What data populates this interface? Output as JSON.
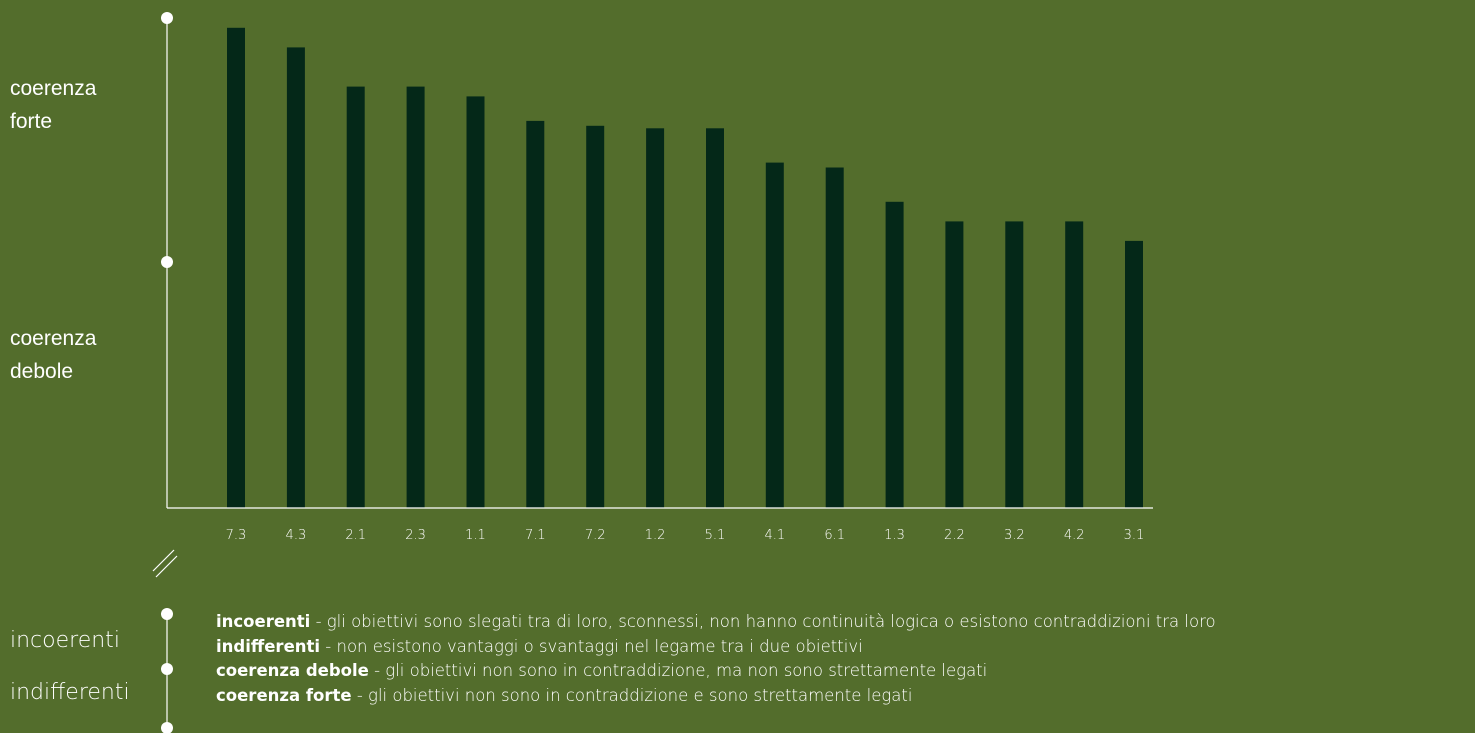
{
  "scale": {
    "strong_label": "coerenza\nforte",
    "weak_label": "coerenza\ndebole",
    "incoherent_label": "incoerenti",
    "indifferent_label": "indifferenti"
  },
  "legend": [
    {
      "term": "incoerenti",
      "description": " - gli obiettivi sono slegati tra di loro, sconnessi, non hanno continuità logica o esistono contraddizioni tra loro"
    },
    {
      "term": "indifferenti",
      "description": " - non esistono vantaggi o svantaggi nel legame tra i due obiettivi"
    },
    {
      "term": "coerenza debole",
      "description": " - gli obiettivi non sono in contraddizione, ma non sono strettamente legati"
    },
    {
      "term": "coerenza forte",
      "description": " - gli obiettivi non sono in contraddizione e sono strettamente legati"
    }
  ],
  "colors": {
    "background": "#536d2c",
    "bar": "#042818",
    "axis": "#ffffff"
  },
  "chart_data": {
    "type": "bar",
    "categories": [
      "7.3",
      "4.3",
      "2.1",
      "2.3",
      "1.1",
      "7.1",
      "7.2",
      "1.2",
      "5.1",
      "4.1",
      "6.1",
      "1.3",
      "2.2",
      "3.2",
      "4.2",
      "3.1"
    ],
    "values": [
      1.96,
      1.88,
      1.72,
      1.72,
      1.68,
      1.58,
      1.56,
      1.55,
      1.55,
      1.41,
      1.39,
      1.25,
      1.17,
      1.17,
      1.17,
      1.09
    ],
    "ylim": [
      0,
      2.0
    ],
    "grid": false,
    "legend_position": "bottom"
  }
}
